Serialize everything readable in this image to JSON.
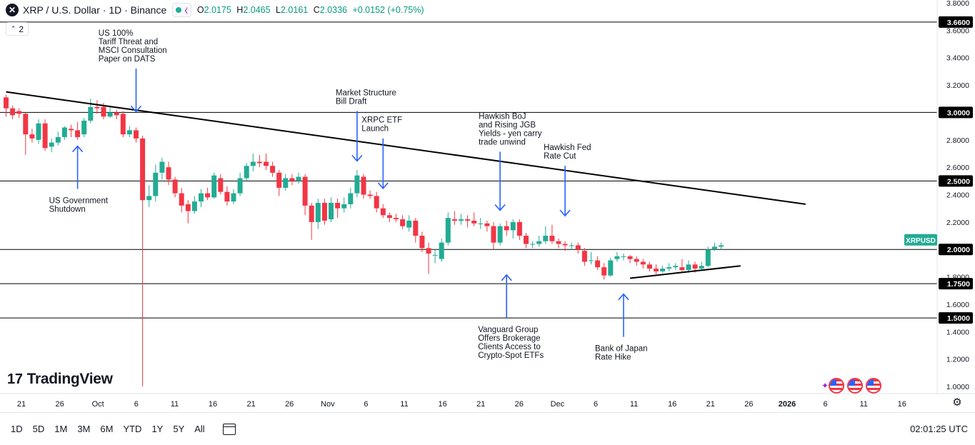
{
  "header": {
    "symbol_icon": "x-circle-icon",
    "title": "XRP / U.S. Dollar · 1D · Binance",
    "ohlc": [
      {
        "label": "O",
        "value": "2.0175"
      },
      {
        "label": "H",
        "value": "2.0465"
      },
      {
        "label": "L",
        "value": "2.0161"
      },
      {
        "label": "C",
        "value": "2.0336"
      }
    ],
    "change": "+0.0152 (+0.75%)",
    "collapse_label": "2"
  },
  "colors": {
    "up": "#22ab94",
    "down": "#f23645",
    "annotation": "#2962ff",
    "text": "#131722",
    "grid": "#e0e3eb"
  },
  "branding": {
    "logo_text": "TradingView",
    "logo_mark": "17"
  },
  "bottom_bar": {
    "ranges": [
      "1D",
      "5D",
      "1M",
      "3M",
      "6M",
      "YTD",
      "1Y",
      "5Y",
      "All"
    ],
    "clock": "02:01:25 UTC"
  },
  "chart_data": {
    "type": "candlestick",
    "symbol_label": "XRPUSD",
    "last_price": 2.0336,
    "ylim": [
      0.95,
      3.8
    ],
    "y_ticks": [
      "3.8000",
      "3.6000",
      "3.4000",
      "3.2000",
      "3.0000",
      "2.8000",
      "2.6000",
      "2.4000",
      "2.2000",
      "2.0000",
      "1.8000",
      "1.6000",
      "1.4000",
      "1.2000",
      "1.0000"
    ],
    "x_ticks": [
      "21",
      "26",
      "Oct",
      "6",
      "11",
      "16",
      "21",
      "26",
      "Nov",
      "6",
      "11",
      "16",
      "21",
      "26",
      "Dec",
      "6",
      "11",
      "16",
      "21",
      "26",
      "2026",
      "6",
      "11",
      "16"
    ],
    "horizontal_levels": [
      "3.6600",
      "3.0000",
      "2.5000",
      "2.0000",
      "1.7500",
      "1.5000"
    ],
    "candles": [
      {
        "o": 3.11,
        "c": 3.03,
        "h": 3.13,
        "l": 2.97
      },
      {
        "o": 3.03,
        "c": 2.98,
        "h": 3.05,
        "l": 2.95
      },
      {
        "o": 3.01,
        "c": 2.99,
        "h": 3.03,
        "l": 2.96
      },
      {
        "o": 2.99,
        "c": 2.84,
        "h": 3.0,
        "l": 2.69
      },
      {
        "o": 2.84,
        "c": 2.81,
        "h": 2.88,
        "l": 2.78
      },
      {
        "o": 2.8,
        "c": 2.92,
        "h": 2.95,
        "l": 2.77
      },
      {
        "o": 2.92,
        "c": 2.74,
        "h": 2.95,
        "l": 2.72
      },
      {
        "o": 2.75,
        "c": 2.78,
        "h": 2.81,
        "l": 2.71
      },
      {
        "o": 2.78,
        "c": 2.82,
        "h": 2.86,
        "l": 2.76
      },
      {
        "o": 2.82,
        "c": 2.89,
        "h": 2.9,
        "l": 2.8
      },
      {
        "o": 2.88,
        "c": 2.87,
        "h": 2.91,
        "l": 2.82
      },
      {
        "o": 2.87,
        "c": 2.82,
        "h": 2.93,
        "l": 2.8
      },
      {
        "o": 2.84,
        "c": 2.94,
        "h": 2.96,
        "l": 2.82
      },
      {
        "o": 2.94,
        "c": 3.04,
        "h": 3.1,
        "l": 2.92
      },
      {
        "o": 3.04,
        "c": 3.03,
        "h": 3.09,
        "l": 2.99
      },
      {
        "o": 3.04,
        "c": 2.97,
        "h": 3.07,
        "l": 2.95
      },
      {
        "o": 2.97,
        "c": 3.0,
        "h": 3.04,
        "l": 2.96
      },
      {
        "o": 3.0,
        "c": 2.98,
        "h": 3.02,
        "l": 2.95
      },
      {
        "o": 2.99,
        "c": 2.84,
        "h": 3.01,
        "l": 2.82
      },
      {
        "o": 2.84,
        "c": 2.87,
        "h": 2.9,
        "l": 2.82
      },
      {
        "o": 2.87,
        "c": 2.81,
        "h": 2.89,
        "l": 2.78
      },
      {
        "o": 2.81,
        "c": 2.36,
        "h": 2.83,
        "l": 1.0
      },
      {
        "o": 2.36,
        "c": 2.39,
        "h": 2.47,
        "l": 2.31
      },
      {
        "o": 2.39,
        "c": 2.56,
        "h": 2.62,
        "l": 2.35
      },
      {
        "o": 2.56,
        "c": 2.64,
        "h": 2.67,
        "l": 2.51
      },
      {
        "o": 2.6,
        "c": 2.51,
        "h": 2.64,
        "l": 2.47
      },
      {
        "o": 2.51,
        "c": 2.41,
        "h": 2.53,
        "l": 2.38
      },
      {
        "o": 2.41,
        "c": 2.32,
        "h": 2.45,
        "l": 2.27
      },
      {
        "o": 2.33,
        "c": 2.28,
        "h": 2.36,
        "l": 2.19
      },
      {
        "o": 2.28,
        "c": 2.35,
        "h": 2.39,
        "l": 2.26
      },
      {
        "o": 2.35,
        "c": 2.41,
        "h": 2.44,
        "l": 2.31
      },
      {
        "o": 2.41,
        "c": 2.38,
        "h": 2.45,
        "l": 2.36
      },
      {
        "o": 2.38,
        "c": 2.54,
        "h": 2.56,
        "l": 2.37
      },
      {
        "o": 2.52,
        "c": 2.42,
        "h": 2.55,
        "l": 2.4
      },
      {
        "o": 2.42,
        "c": 2.35,
        "h": 2.46,
        "l": 2.32
      },
      {
        "o": 2.35,
        "c": 2.41,
        "h": 2.44,
        "l": 2.33
      },
      {
        "o": 2.41,
        "c": 2.52,
        "h": 2.56,
        "l": 2.39
      },
      {
        "o": 2.52,
        "c": 2.61,
        "h": 2.63,
        "l": 2.5
      },
      {
        "o": 2.61,
        "c": 2.64,
        "h": 2.7,
        "l": 2.57
      },
      {
        "o": 2.64,
        "c": 2.63,
        "h": 2.69,
        "l": 2.6
      },
      {
        "o": 2.64,
        "c": 2.61,
        "h": 2.7,
        "l": 2.58
      },
      {
        "o": 2.61,
        "c": 2.56,
        "h": 2.64,
        "l": 2.53
      },
      {
        "o": 2.56,
        "c": 2.45,
        "h": 2.58,
        "l": 2.39
      },
      {
        "o": 2.45,
        "c": 2.52,
        "h": 2.55,
        "l": 2.43
      },
      {
        "o": 2.52,
        "c": 2.5,
        "h": 2.55,
        "l": 2.47
      },
      {
        "o": 2.5,
        "c": 2.53,
        "h": 2.56,
        "l": 2.48
      },
      {
        "o": 2.53,
        "c": 2.32,
        "h": 2.55,
        "l": 2.25
      },
      {
        "o": 2.32,
        "c": 2.2,
        "h": 2.34,
        "l": 2.07
      },
      {
        "o": 2.2,
        "c": 2.34,
        "h": 2.37,
        "l": 2.15
      },
      {
        "o": 2.34,
        "c": 2.21,
        "h": 2.37,
        "l": 2.18
      },
      {
        "o": 2.22,
        "c": 2.34,
        "h": 2.38,
        "l": 2.2
      },
      {
        "o": 2.34,
        "c": 2.3,
        "h": 2.37,
        "l": 2.23
      },
      {
        "o": 2.3,
        "c": 2.33,
        "h": 2.38,
        "l": 2.27
      },
      {
        "o": 2.33,
        "c": 2.41,
        "h": 2.45,
        "l": 2.3
      },
      {
        "o": 2.41,
        "c": 2.54,
        "h": 2.58,
        "l": 2.38
      },
      {
        "o": 2.53,
        "c": 2.4,
        "h": 2.55,
        "l": 2.37
      },
      {
        "o": 2.4,
        "c": 2.39,
        "h": 2.43,
        "l": 2.37
      },
      {
        "o": 2.39,
        "c": 2.3,
        "h": 2.42,
        "l": 2.27
      },
      {
        "o": 2.3,
        "c": 2.25,
        "h": 2.33,
        "l": 2.23
      },
      {
        "o": 2.25,
        "c": 2.23,
        "h": 2.27,
        "l": 2.2
      },
      {
        "o": 2.23,
        "c": 2.22,
        "h": 2.26,
        "l": 2.2
      },
      {
        "o": 2.22,
        "c": 2.17,
        "h": 2.25,
        "l": 2.15
      },
      {
        "o": 2.16,
        "c": 2.21,
        "h": 2.25,
        "l": 2.13
      },
      {
        "o": 2.21,
        "c": 2.1,
        "h": 2.23,
        "l": 2.05
      },
      {
        "o": 2.1,
        "c": 2.01,
        "h": 2.13,
        "l": 1.98
      },
      {
        "o": 2.01,
        "c": 1.97,
        "h": 2.05,
        "l": 1.82
      },
      {
        "o": 1.96,
        "c": 1.96,
        "h": 2.0,
        "l": 1.9
      },
      {
        "o": 1.93,
        "c": 2.05,
        "h": 2.08,
        "l": 1.91
      },
      {
        "o": 2.05,
        "c": 2.23,
        "h": 2.27,
        "l": 2.03
      },
      {
        "o": 2.22,
        "c": 2.21,
        "h": 2.28,
        "l": 2.18
      },
      {
        "o": 2.21,
        "c": 2.22,
        "h": 2.26,
        "l": 2.18
      },
      {
        "o": 2.22,
        "c": 2.21,
        "h": 2.25,
        "l": 2.16
      },
      {
        "o": 2.21,
        "c": 2.19,
        "h": 2.27,
        "l": 2.17
      },
      {
        "o": 2.19,
        "c": 2.19,
        "h": 2.23,
        "l": 2.15
      },
      {
        "o": 2.19,
        "c": 2.17,
        "h": 2.21,
        "l": 2.13
      },
      {
        "o": 2.17,
        "c": 2.05,
        "h": 2.2,
        "l": 2.0
      },
      {
        "o": 2.05,
        "c": 2.17,
        "h": 2.19,
        "l": 2.03
      },
      {
        "o": 2.17,
        "c": 2.14,
        "h": 2.21,
        "l": 2.1
      },
      {
        "o": 2.14,
        "c": 2.2,
        "h": 2.22,
        "l": 2.08
      },
      {
        "o": 2.2,
        "c": 2.1,
        "h": 2.22,
        "l": 2.07
      },
      {
        "o": 2.1,
        "c": 2.04,
        "h": 2.12,
        "l": 2.01
      },
      {
        "o": 2.04,
        "c": 2.04,
        "h": 2.06,
        "l": 2.01
      },
      {
        "o": 2.04,
        "c": 2.06,
        "h": 2.1,
        "l": 2.02
      },
      {
        "o": 2.06,
        "c": 2.1,
        "h": 2.17,
        "l": 2.04
      },
      {
        "o": 2.1,
        "c": 2.06,
        "h": 2.18,
        "l": 2.04
      },
      {
        "o": 2.06,
        "c": 2.04,
        "h": 2.08,
        "l": 2.01
      },
      {
        "o": 2.04,
        "c": 2.03,
        "h": 2.06,
        "l": 1.99
      },
      {
        "o": 2.03,
        "c": 2.03,
        "h": 2.05,
        "l": 2.0
      },
      {
        "o": 2.03,
        "c": 2.0,
        "h": 2.05,
        "l": 1.97
      },
      {
        "o": 1.99,
        "c": 1.91,
        "h": 2.01,
        "l": 1.88
      },
      {
        "o": 1.92,
        "c": 1.92,
        "h": 1.98,
        "l": 1.89
      },
      {
        "o": 1.92,
        "c": 1.87,
        "h": 1.95,
        "l": 1.85
      },
      {
        "o": 1.87,
        "c": 1.81,
        "h": 1.9,
        "l": 1.78
      },
      {
        "o": 1.81,
        "c": 1.92,
        "h": 1.94,
        "l": 1.8
      },
      {
        "o": 1.93,
        "c": 1.95,
        "h": 1.98,
        "l": 1.91
      },
      {
        "o": 1.95,
        "c": 1.95,
        "h": 1.97,
        "l": 1.92
      },
      {
        "o": 1.95,
        "c": 1.93,
        "h": 1.96,
        "l": 1.9
      },
      {
        "o": 1.93,
        "c": 1.91,
        "h": 1.95,
        "l": 1.88
      },
      {
        "o": 1.91,
        "c": 1.89,
        "h": 1.93,
        "l": 1.86
      },
      {
        "o": 1.89,
        "c": 1.86,
        "h": 1.91,
        "l": 1.84
      },
      {
        "o": 1.86,
        "c": 1.84,
        "h": 1.89,
        "l": 1.82
      },
      {
        "o": 1.84,
        "c": 1.86,
        "h": 1.88,
        "l": 1.83
      },
      {
        "o": 1.86,
        "c": 1.87,
        "h": 1.9,
        "l": 1.84
      },
      {
        "o": 1.87,
        "c": 1.88,
        "h": 1.9,
        "l": 1.85
      },
      {
        "o": 1.87,
        "c": 1.85,
        "h": 1.93,
        "l": 1.84
      },
      {
        "o": 1.85,
        "c": 1.89,
        "h": 1.92,
        "l": 1.83
      },
      {
        "o": 1.89,
        "c": 1.86,
        "h": 1.91,
        "l": 1.83
      },
      {
        "o": 1.86,
        "c": 1.88,
        "h": 1.91,
        "l": 1.85
      },
      {
        "o": 1.88,
        "c": 2.0,
        "h": 2.02,
        "l": 1.87
      },
      {
        "o": 2.0,
        "c": 2.02,
        "h": 2.05,
        "l": 1.99
      },
      {
        "o": 2.02,
        "c": 2.03,
        "h": 2.05,
        "l": 2.0
      }
    ],
    "trendlines": [
      {
        "name": "descending-resistance",
        "from": {
          "bar": 0,
          "price": 3.15
        },
        "to": {
          "bar": 123,
          "price": 2.33
        }
      },
      {
        "name": "ascending-support",
        "from": {
          "bar": 96,
          "price": 1.79
        },
        "to": {
          "bar": 113,
          "price": 1.88
        }
      }
    ],
    "annotations": [
      {
        "lines": [
          "US 100%",
          "Tariff Threat and",
          "MSCI Consultation",
          "Paper on DATS"
        ],
        "align": "center",
        "arrow_direction": "down",
        "target_bar": 20,
        "target_price": 2.99
      },
      {
        "lines": [
          "US Government",
          "Shutdown"
        ],
        "align": "left",
        "arrow_direction": "up",
        "target_bar": 11,
        "target_price": 2.77
      },
      {
        "lines": [
          "Market Structure",
          "Bill Draft"
        ],
        "align": "left",
        "arrow_direction": "down",
        "target_bar": 54,
        "target_price": 2.63
      },
      {
        "lines": [
          "XRPC ETF",
          "Launch"
        ],
        "align": "left",
        "arrow_direction": "down",
        "target_bar": 58,
        "target_price": 2.43
      },
      {
        "lines": [
          "Hawkish BoJ",
          "and Rising JGB",
          "Yields - yen carry",
          "trade unwind"
        ],
        "align": "left",
        "arrow_direction": "down",
        "target_bar": 76,
        "target_price": 2.27
      },
      {
        "lines": [
          "Hawkish Fed",
          "Rate Cut"
        ],
        "align": "left",
        "arrow_direction": "down",
        "target_bar": 86,
        "target_price": 2.23
      },
      {
        "lines": [
          "Vanguard Group",
          "Offers Brokerage",
          "Clients Access to",
          "Crypto-Spot ETFs"
        ],
        "align": "left",
        "arrow_direction": "up",
        "target_bar": 77,
        "target_price": 1.83
      },
      {
        "lines": [
          "Bank of Japan",
          "Rate Hike"
        ],
        "align": "left",
        "arrow_direction": "up",
        "target_bar": 95,
        "target_price": 1.69
      }
    ]
  }
}
